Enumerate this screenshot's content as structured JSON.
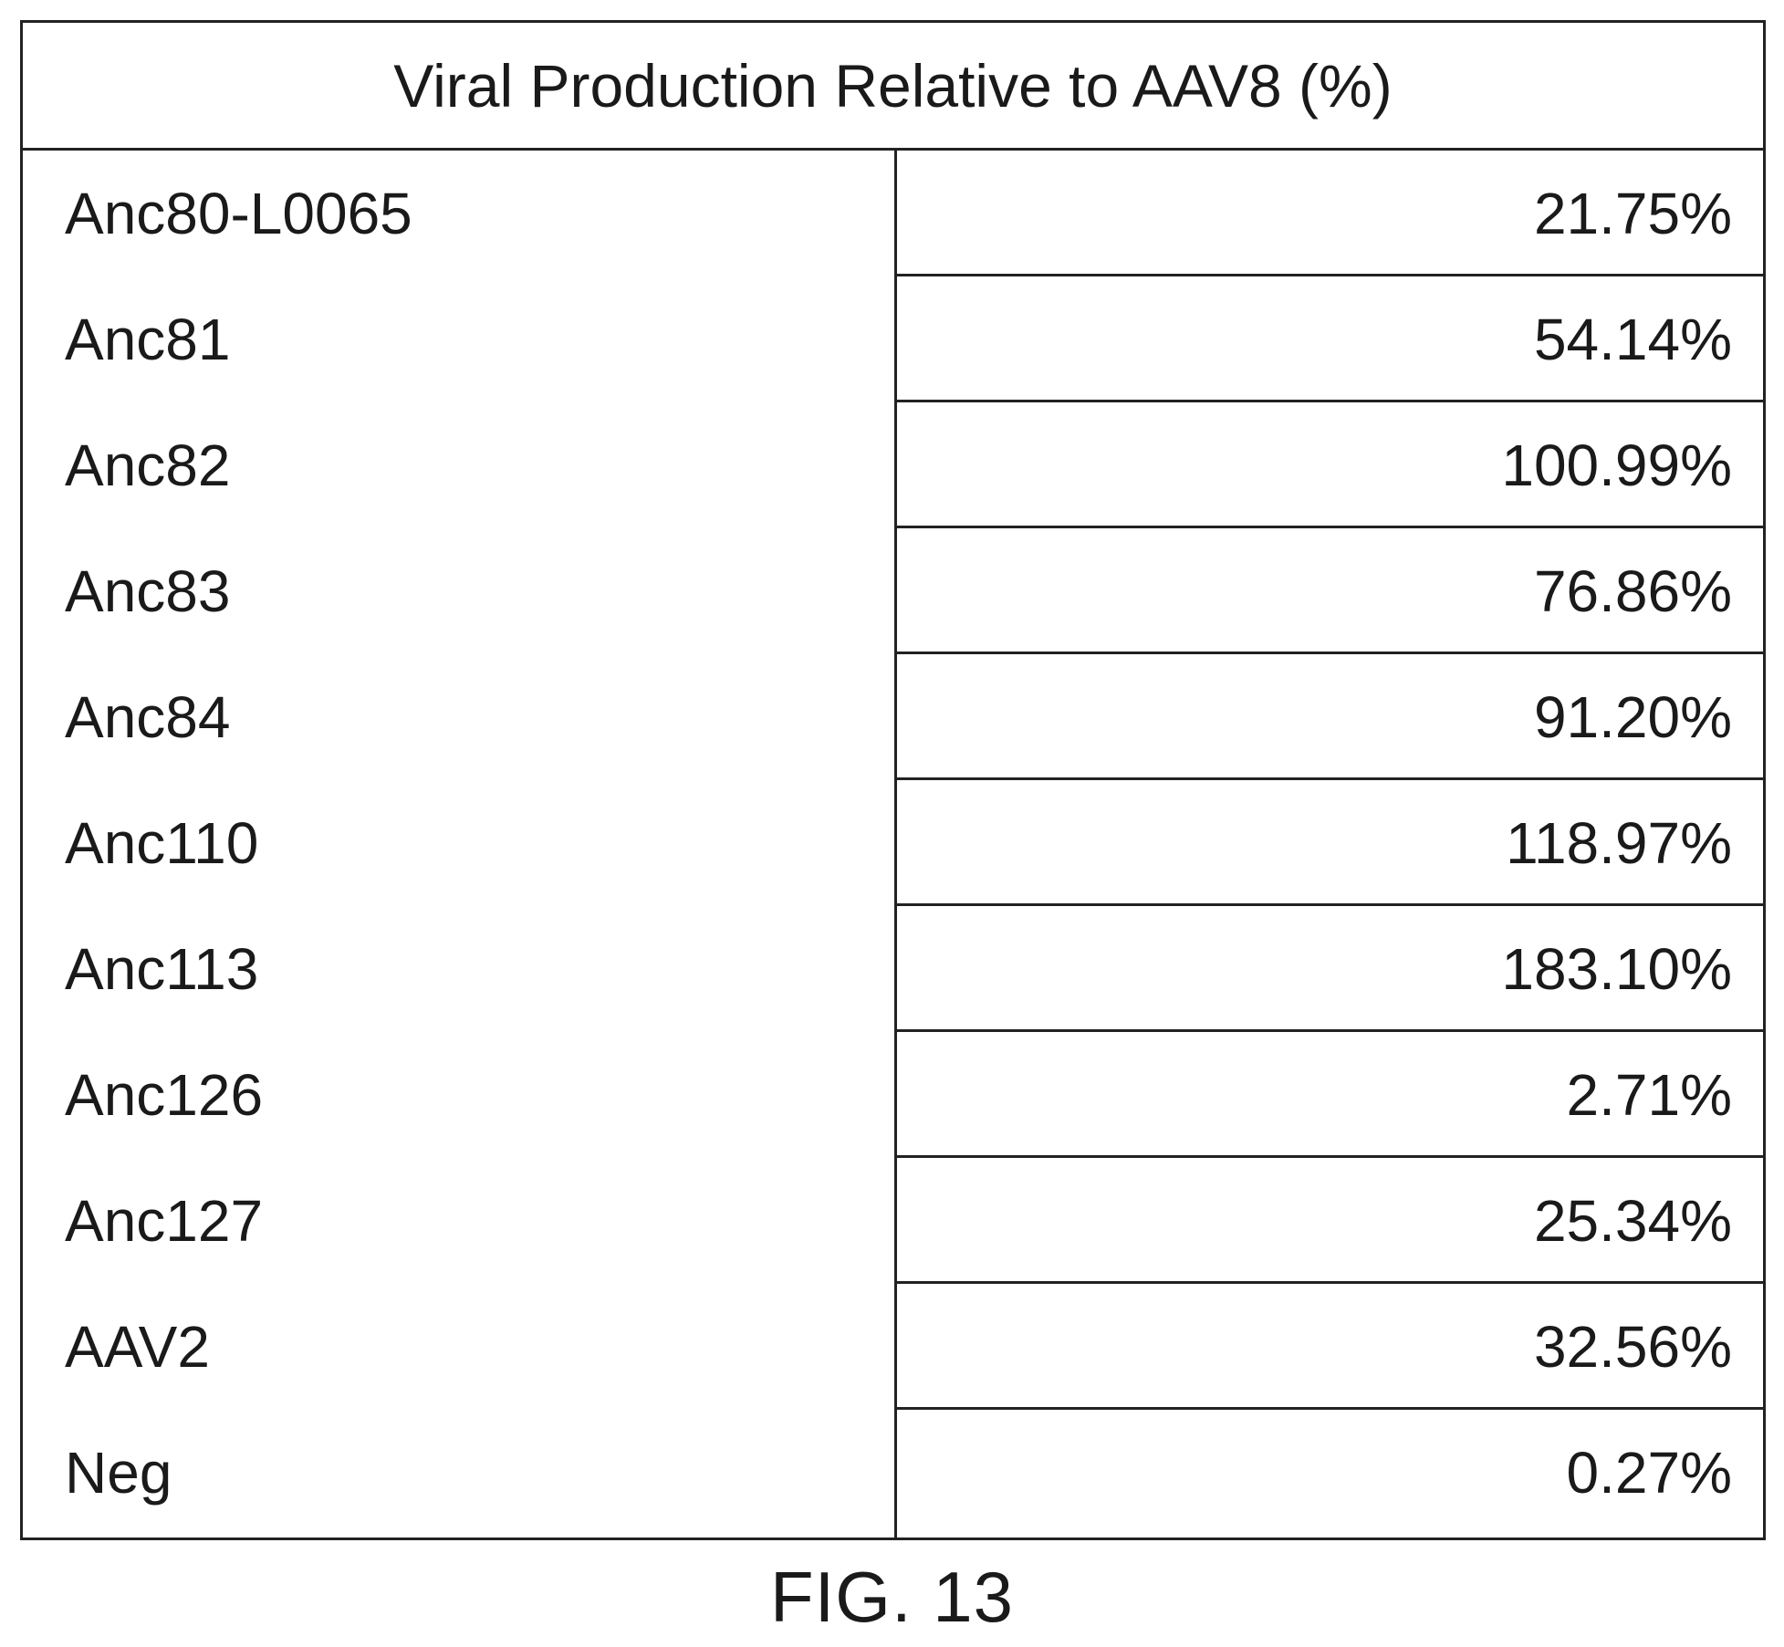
{
  "chart_data": {
    "type": "table",
    "title": "Viral Production Relative to AAV8 (%)",
    "rows": [
      {
        "label": "Anc80-L0065",
        "value": "21.75%"
      },
      {
        "label": "Anc81",
        "value": "54.14%"
      },
      {
        "label": "Anc82",
        "value": "100.99%"
      },
      {
        "label": "Anc83",
        "value": "76.86%"
      },
      {
        "label": "Anc84",
        "value": "91.20%"
      },
      {
        "label": "Anc110",
        "value": "118.97%"
      },
      {
        "label": "Anc113",
        "value": "183.10%"
      },
      {
        "label": "Anc126",
        "value": "2.71%"
      },
      {
        "label": "Anc127",
        "value": "25.34%"
      },
      {
        "label": "AAV2",
        "value": "32.56%"
      },
      {
        "label": "Neg",
        "value": "0.27%"
      }
    ]
  },
  "caption": "FIG. 13"
}
